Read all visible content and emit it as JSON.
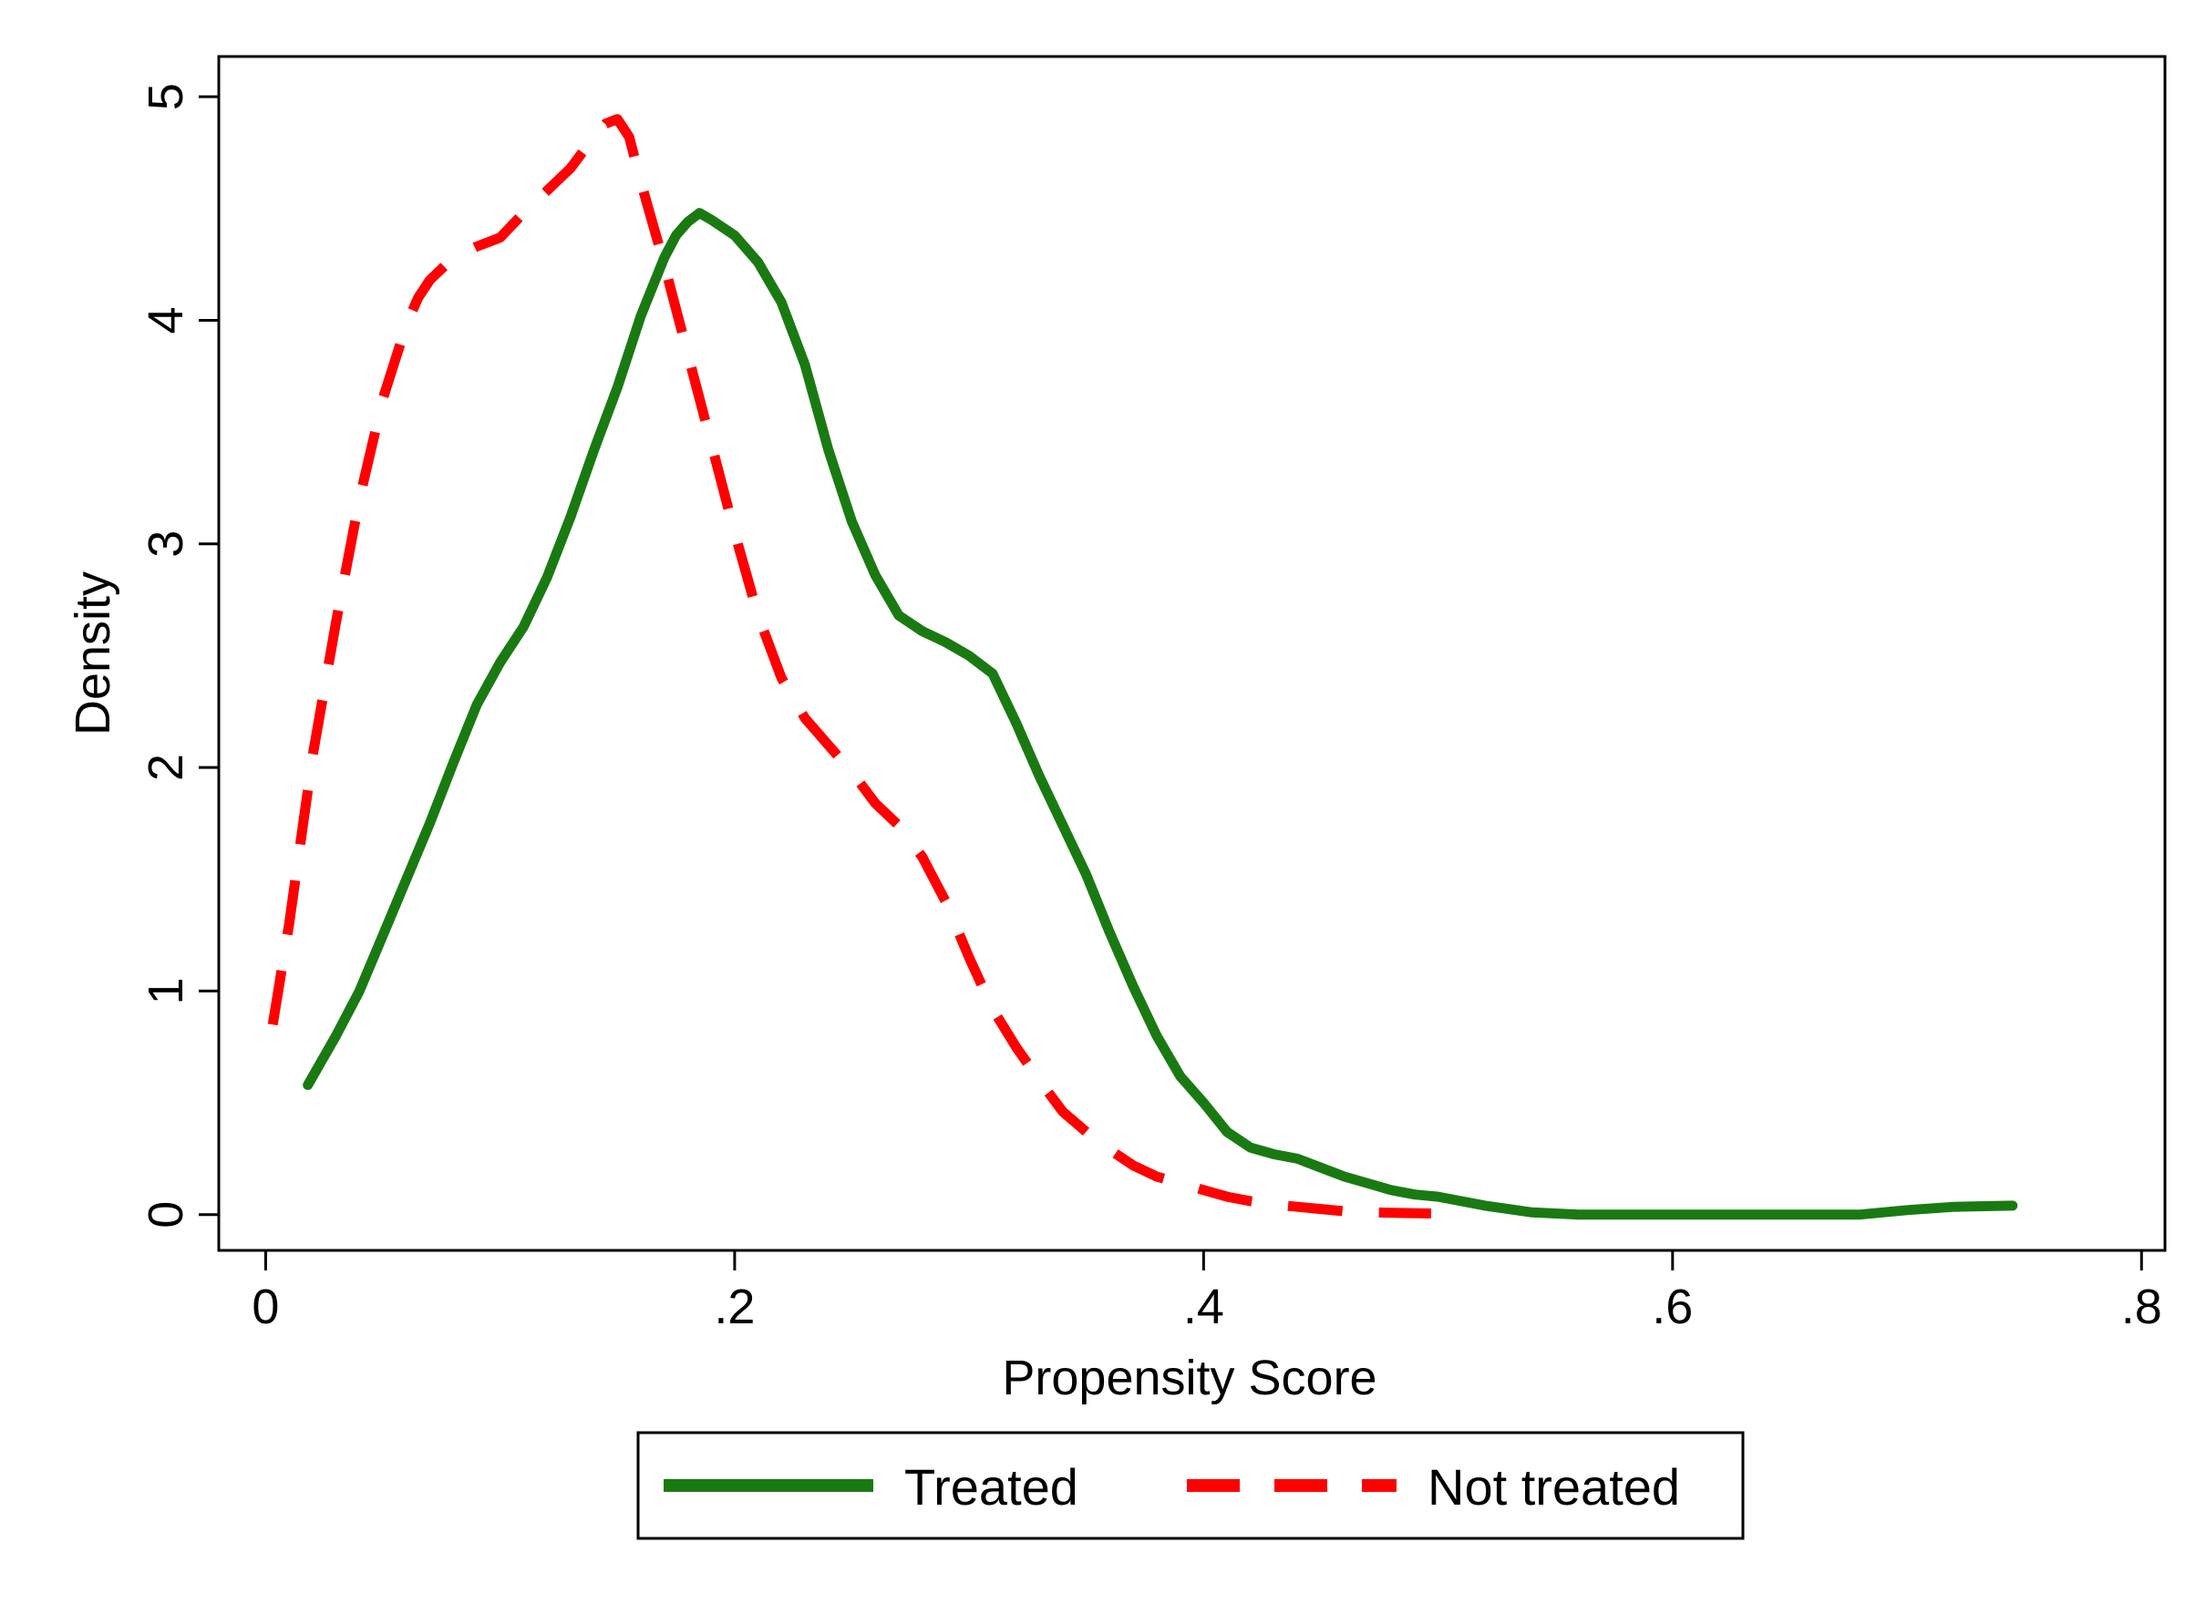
{
  "chart_data": {
    "type": "line",
    "xlabel": "Propensity Score",
    "ylabel": "Density",
    "xlim": [
      -0.02,
      0.81
    ],
    "ylim": [
      -0.16,
      5.18
    ],
    "x_ticks": [
      {
        "value": 0,
        "label": "0"
      },
      {
        "value": 0.2,
        "label": ".2"
      },
      {
        "value": 0.4,
        "label": ".4"
      },
      {
        "value": 0.6,
        "label": ".6"
      },
      {
        "value": 0.8,
        "label": ".8"
      }
    ],
    "y_ticks": [
      {
        "value": 0,
        "label": "0"
      },
      {
        "value": 1,
        "label": "1"
      },
      {
        "value": 2,
        "label": "2"
      },
      {
        "value": 3,
        "label": "3"
      },
      {
        "value": 4,
        "label": "4"
      },
      {
        "value": 5,
        "label": "5"
      }
    ],
    "grid": false,
    "legend_position": "bottom",
    "series": [
      {
        "name": "Treated",
        "color": "#1a7a12",
        "style": "solid",
        "points": [
          [
            0.018,
            0.58
          ],
          [
            0.03,
            0.8
          ],
          [
            0.04,
            1.0
          ],
          [
            0.05,
            1.25
          ],
          [
            0.06,
            1.5
          ],
          [
            0.07,
            1.75
          ],
          [
            0.08,
            2.02
          ],
          [
            0.09,
            2.28
          ],
          [
            0.1,
            2.47
          ],
          [
            0.11,
            2.63
          ],
          [
            0.12,
            2.85
          ],
          [
            0.13,
            3.12
          ],
          [
            0.14,
            3.42
          ],
          [
            0.15,
            3.7
          ],
          [
            0.16,
            4.02
          ],
          [
            0.17,
            4.28
          ],
          [
            0.175,
            4.38
          ],
          [
            0.18,
            4.44
          ],
          [
            0.185,
            4.48
          ],
          [
            0.19,
            4.45
          ],
          [
            0.2,
            4.38
          ],
          [
            0.21,
            4.26
          ],
          [
            0.22,
            4.08
          ],
          [
            0.23,
            3.8
          ],
          [
            0.24,
            3.42
          ],
          [
            0.25,
            3.1
          ],
          [
            0.26,
            2.86
          ],
          [
            0.27,
            2.68
          ],
          [
            0.28,
            2.61
          ],
          [
            0.29,
            2.56
          ],
          [
            0.3,
            2.5
          ],
          [
            0.31,
            2.42
          ],
          [
            0.32,
            2.2
          ],
          [
            0.33,
            1.96
          ],
          [
            0.34,
            1.74
          ],
          [
            0.35,
            1.52
          ],
          [
            0.36,
            1.26
          ],
          [
            0.37,
            1.02
          ],
          [
            0.38,
            0.8
          ],
          [
            0.39,
            0.62
          ],
          [
            0.4,
            0.5
          ],
          [
            0.41,
            0.37
          ],
          [
            0.42,
            0.3
          ],
          [
            0.43,
            0.27
          ],
          [
            0.44,
            0.25
          ],
          [
            0.45,
            0.21
          ],
          [
            0.46,
            0.17
          ],
          [
            0.47,
            0.14
          ],
          [
            0.48,
            0.11
          ],
          [
            0.49,
            0.09
          ],
          [
            0.5,
            0.08
          ],
          [
            0.52,
            0.04
          ],
          [
            0.54,
            0.01
          ],
          [
            0.56,
            0.0
          ],
          [
            0.6,
            0.0
          ],
          [
            0.65,
            0.0
          ],
          [
            0.68,
            0.0
          ],
          [
            0.7,
            0.02
          ],
          [
            0.72,
            0.035
          ],
          [
            0.745,
            0.04
          ]
        ]
      },
      {
        "name": "Not treated",
        "color": "#ff0000",
        "style": "dashed",
        "points": [
          [
            0.003,
            0.85
          ],
          [
            0.01,
            1.3
          ],
          [
            0.02,
            2.05
          ],
          [
            0.03,
            2.65
          ],
          [
            0.04,
            3.2
          ],
          [
            0.05,
            3.65
          ],
          [
            0.06,
            3.98
          ],
          [
            0.065,
            4.1
          ],
          [
            0.07,
            4.18
          ],
          [
            0.08,
            4.28
          ],
          [
            0.09,
            4.33
          ],
          [
            0.1,
            4.37
          ],
          [
            0.11,
            4.48
          ],
          [
            0.12,
            4.58
          ],
          [
            0.13,
            4.68
          ],
          [
            0.14,
            4.82
          ],
          [
            0.145,
            4.88
          ],
          [
            0.15,
            4.9
          ],
          [
            0.155,
            4.82
          ],
          [
            0.16,
            4.62
          ],
          [
            0.17,
            4.25
          ],
          [
            0.18,
            3.85
          ],
          [
            0.19,
            3.45
          ],
          [
            0.2,
            3.05
          ],
          [
            0.21,
            2.68
          ],
          [
            0.22,
            2.4
          ],
          [
            0.23,
            2.22
          ],
          [
            0.24,
            2.1
          ],
          [
            0.25,
            1.98
          ],
          [
            0.26,
            1.84
          ],
          [
            0.27,
            1.74
          ],
          [
            0.28,
            1.6
          ],
          [
            0.29,
            1.4
          ],
          [
            0.3,
            1.15
          ],
          [
            0.31,
            0.92
          ],
          [
            0.32,
            0.75
          ],
          [
            0.33,
            0.6
          ],
          [
            0.34,
            0.46
          ],
          [
            0.35,
            0.37
          ],
          [
            0.36,
            0.29
          ],
          [
            0.37,
            0.22
          ],
          [
            0.38,
            0.17
          ],
          [
            0.39,
            0.14
          ],
          [
            0.4,
            0.11
          ],
          [
            0.41,
            0.08
          ],
          [
            0.42,
            0.06
          ],
          [
            0.43,
            0.045
          ],
          [
            0.44,
            0.035
          ],
          [
            0.45,
            0.025
          ],
          [
            0.46,
            0.015
          ],
          [
            0.48,
            0.008
          ],
          [
            0.497,
            0.005
          ]
        ]
      }
    ]
  }
}
